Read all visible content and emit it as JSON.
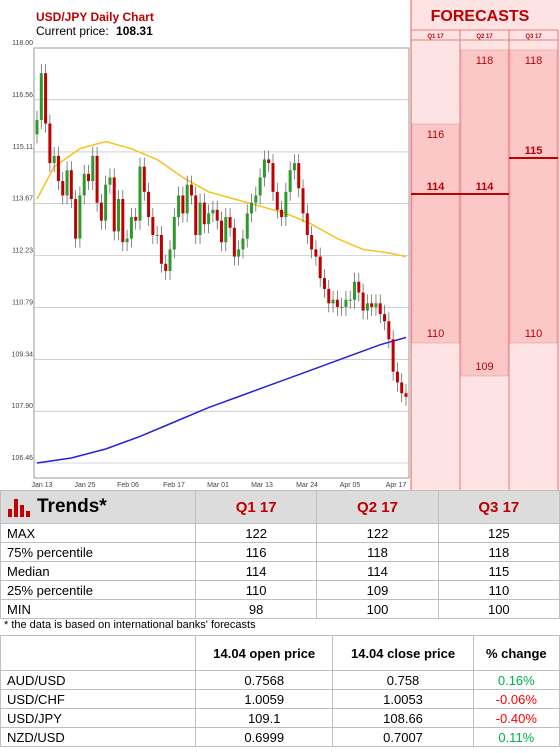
{
  "chart_data": {
    "type": "candlestick",
    "title": "USD/JPY Daily Chart",
    "current_price_label": "Current price:",
    "current_price": "108.31",
    "y_ticks": [
      106.46,
      107.9,
      109.34,
      110.79,
      112.23,
      113.67,
      115.11,
      116.56,
      118.0
    ],
    "ylim": [
      106.46,
      118.0
    ],
    "x_ticks": [
      "Jan 13",
      "Jan 25",
      "Feb 06",
      "Feb 17",
      "Mar 01",
      "Mar 13",
      "Mar 24",
      "Apr 05",
      "Apr 17"
    ],
    "close_prices": [
      116.0,
      117.3,
      115.9,
      114.8,
      115.0,
      114.3,
      113.9,
      114.6,
      113.8,
      112.7,
      113.9,
      114.5,
      114.3,
      115.0,
      113.7,
      113.2,
      114.2,
      114.4,
      112.9,
      113.8,
      112.6,
      112.7,
      113.3,
      113.2,
      114.7,
      114.0,
      113.3,
      112.8,
      112.8,
      112.0,
      111.8,
      112.4,
      113.3,
      113.9,
      113.4,
      114.2,
      113.9,
      112.8,
      113.7,
      113.1,
      113.4,
      113.5,
      113.2,
      112.6,
      113.3,
      113.0,
      112.2,
      112.4,
      112.7,
      113.4,
      113.7,
      113.9,
      114.4,
      114.9,
      114.8,
      114.0,
      113.5,
      113.3,
      114.0,
      114.6,
      114.8,
      114.1,
      113.4,
      112.8,
      112.4,
      112.2,
      111.6,
      111.3,
      110.9,
      111.0,
      110.8,
      110.8,
      111.0,
      111.0,
      111.5,
      111.2,
      110.7,
      110.9,
      110.8,
      110.9,
      110.6,
      110.4,
      109.9,
      109.0,
      108.7,
      108.4,
      108.3
    ],
    "series": [
      {
        "name": "",
        "color": "#f7c21b",
        "x": [
          0,
          4,
          10,
          16,
          22,
          28,
          34,
          40,
          46,
          52,
          58,
          64,
          70,
          76,
          82,
          86
        ],
        "values": [
          113.8,
          114.7,
          115.2,
          115.4,
          115.2,
          114.9,
          114.4,
          114.0,
          113.8,
          113.6,
          113.4,
          113.1,
          112.7,
          112.4,
          112.3,
          112.2
        ]
      },
      {
        "name": "",
        "color": "#2222dd",
        "x": [
          0,
          8,
          16,
          24,
          32,
          40,
          48,
          56,
          64,
          72,
          80,
          86
        ],
        "values": [
          106.46,
          106.6,
          106.85,
          107.2,
          107.6,
          108.0,
          108.35,
          108.7,
          109.05,
          109.4,
          109.75,
          109.95
        ]
      }
    ],
    "forecasts": {
      "title": "FORECASTS",
      "quarters": [
        "Q1 17",
        "Q2 17",
        "Q3 17"
      ],
      "p75": [
        "116",
        "118",
        "118"
      ],
      "median": [
        "114",
        "114",
        "115"
      ],
      "p25": [
        "110",
        "109",
        "110"
      ],
      "p75_values": [
        116,
        118,
        118
      ],
      "median_values": [
        114,
        114,
        115
      ],
      "p25_values": [
        110,
        109,
        110
      ]
    }
  },
  "trends": {
    "title": "Trends*",
    "quarters": [
      "Q1 17",
      "Q2 17",
      "Q3 17"
    ],
    "rows": [
      {
        "label": "MAX",
        "values": [
          "122",
          "122",
          "125"
        ]
      },
      {
        "label": "75% percentile",
        "values": [
          "116",
          "118",
          "118"
        ]
      },
      {
        "label": "Median",
        "values": [
          "114",
          "114",
          "115"
        ]
      },
      {
        "label": "25% percentile",
        "values": [
          "110",
          "109",
          "110"
        ]
      },
      {
        "label": "MIN",
        "values": [
          "98",
          "100",
          "100"
        ]
      }
    ],
    "footnote": "* the data is based on international banks' forecasts"
  },
  "exchange": {
    "headers": [
      "14.04 open price",
      "14.04 close price",
      "% change"
    ],
    "rows": [
      {
        "pair": "AUD/USD",
        "open": "0.7568",
        "close": "0.758",
        "change": "0.16%",
        "dir": "pos"
      },
      {
        "pair": "USD/CHF",
        "open": "1.0059",
        "close": "1.0053",
        "change": "-0.06%",
        "dir": "neg"
      },
      {
        "pair": "USD/JPY",
        "open": "109.1",
        "close": "108.66",
        "change": "-0.40%",
        "dir": "neg"
      },
      {
        "pair": "NZD/USD",
        "open": "0.6999",
        "close": "0.7007",
        "change": "0.11%",
        "dir": "pos"
      }
    ]
  },
  "colors": {
    "accent": "#c00000",
    "up": "#2e9a2e",
    "down": "#c00000"
  }
}
